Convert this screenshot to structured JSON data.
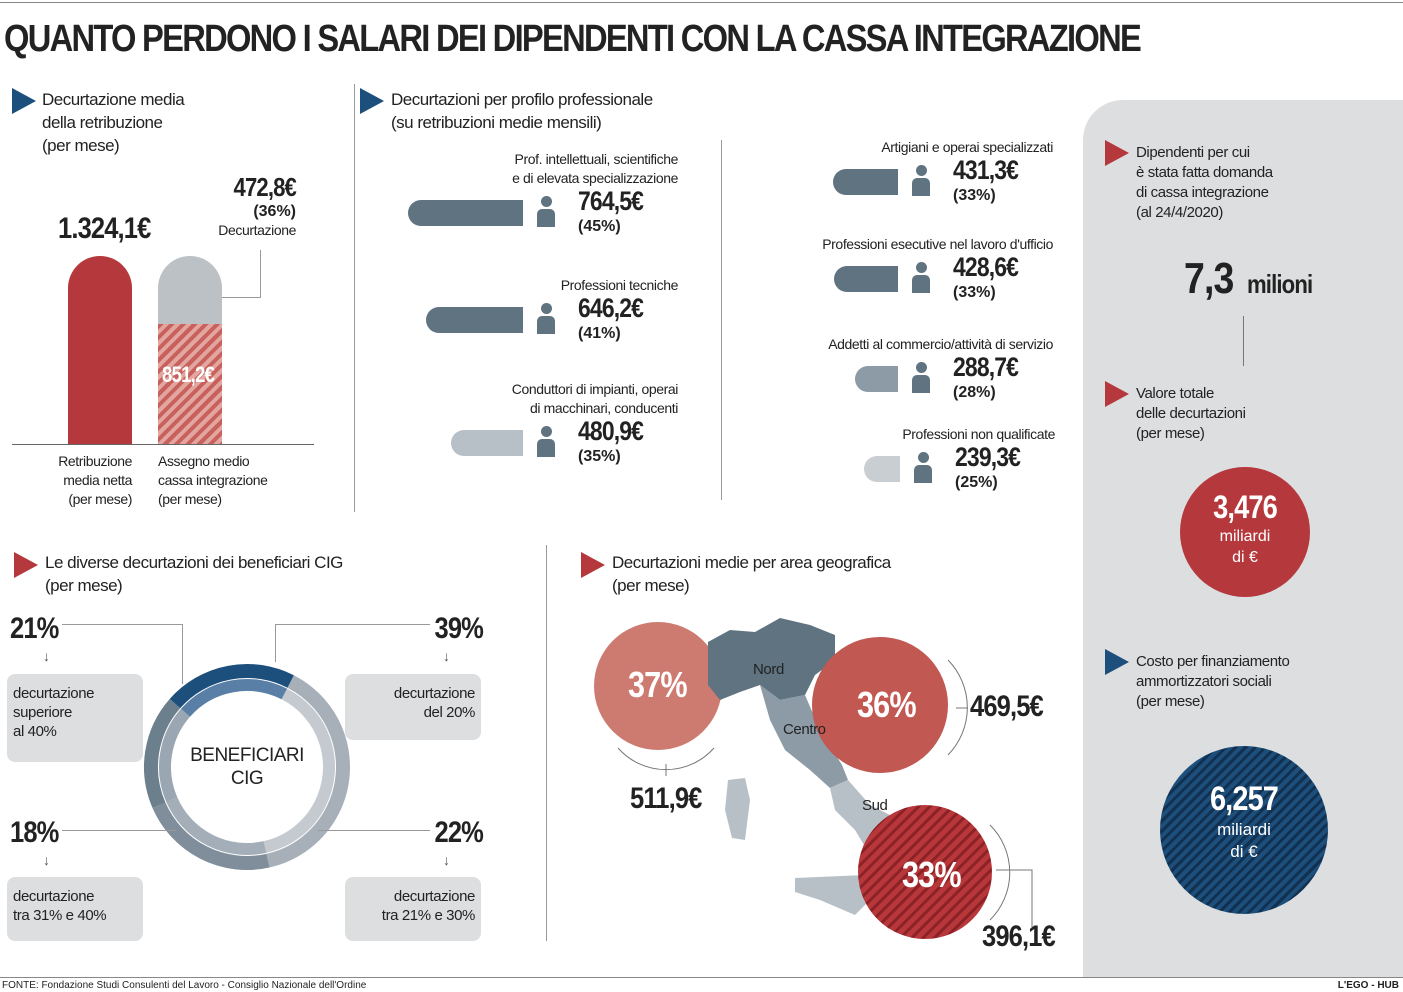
{
  "title": "QUANTO PERDONO I SALARI DEI DIPENDENTI CON LA CASSA INTEGRAZIONE",
  "colors": {
    "red": "#b5393c",
    "blue": "#1d4f7c",
    "gray": "#5f7380",
    "lightgray": "#dcdee0"
  },
  "sec1": {
    "title1": "Decurtazione media",
    "title2": "della retribuzione",
    "title3": "(per mese)",
    "bar1_value": "1.324,1€",
    "bar2_inner": "851,2€",
    "decurt_value": "472,8€",
    "decurt_pct": "(36%)",
    "decurt_label": "Decurtazione",
    "label1": [
      "Retribuzione",
      "media netta",
      "(per mese)"
    ],
    "label2": [
      "Assegno medio",
      "cassa integrazione",
      "(per mese)"
    ]
  },
  "sec2": {
    "title1": "Decurtazioni per profilo professionale",
    "title2": "(su retribuzioni medie mensili)",
    "items": [
      {
        "label": [
          "Prof. intellettuali, scientifiche",
          "e di elevata specializzazione"
        ],
        "value": "764,5€",
        "pct": "(45%)",
        "icon": "gear-person-icon"
      },
      {
        "label": [
          "Professioni tecniche"
        ],
        "value": "646,2€",
        "pct": "(41%)",
        "icon": "technician-icon"
      },
      {
        "label": [
          "Conduttori di impianti, operai",
          "di macchinari, conducenti"
        ],
        "value": "480,9€",
        "pct": "(35%)",
        "icon": "driver-icon"
      },
      {
        "label": [
          "Artigiani e operai specializzati"
        ],
        "value": "431,3€",
        "pct": "(33%)",
        "icon": "worker-icon"
      },
      {
        "label": [
          "Professioni esecutive nel lavoro d'ufficio"
        ],
        "value": "428,6€",
        "pct": "(33%)",
        "icon": "office-worker-icon"
      },
      {
        "label": [
          "Addetti al commercio/attività di servizio"
        ],
        "value": "288,7€",
        "pct": "(28%)",
        "icon": "shop-clerk-icon"
      },
      {
        "label": [
          "Professioni non qualificate"
        ],
        "value": "239,3€",
        "pct": "(25%)",
        "icon": "person-icon"
      }
    ]
  },
  "sec3": {
    "title1": "Le diverse decurtazioni dei beneficiari CIG",
    "title2": "(per mese)",
    "center1": "BENEFICIARI",
    "center2": "CIG",
    "items": [
      {
        "pct": "21%",
        "label": [
          "decurtazione",
          "superiore",
          "al 40%"
        ]
      },
      {
        "pct": "39%",
        "label": [
          "decurtazione",
          "del 20%"
        ]
      },
      {
        "pct": "18%",
        "label": [
          "decurtazione",
          "tra 31% e 40%"
        ]
      },
      {
        "pct": "22%",
        "label": [
          "decurtazione",
          "tra 21% e 30%"
        ]
      }
    ]
  },
  "sec4": {
    "title1": "Decurtazioni medie per area geografica",
    "title2": "(per mese)",
    "areas": [
      {
        "name": "Nord",
        "pct": "37%",
        "value": "511,9€"
      },
      {
        "name": "Centro",
        "pct": "36%",
        "value": "469,5€"
      },
      {
        "name": "Sud",
        "pct": "33%",
        "value": "396,1€"
      }
    ]
  },
  "side": {
    "t1": [
      "Dipendenti per cui",
      "è stata fatta domanda",
      "di cassa integrazione",
      "(al 24/4/2020)"
    ],
    "v1": "7,3",
    "v1unit": "milioni",
    "t2": [
      "Valore totale",
      "delle decurtazioni",
      "(per mese)"
    ],
    "v2": "3,476",
    "v2unit": [
      "miliardi",
      "di €"
    ],
    "t3": [
      "Costo per finanziamento",
      "ammortizzatori sociali",
      "(per mese)"
    ],
    "v3": "6,257",
    "v3unit": [
      "miliardi",
      "di €"
    ]
  },
  "footer": {
    "source": "FONTE: Fondazione Studi Consulenti del Lavoro - Consiglio Nazionale dell'Ordine",
    "credit": "L'EGO - HUB"
  },
  "chart_data": [
    {
      "type": "bar",
      "title": "Decurtazione media della retribuzione (per mese)",
      "categories": [
        "Retribuzione media netta (per mese)",
        "Assegno medio cassa integrazione (per mese)"
      ],
      "values": [
        1324.1,
        851.2
      ],
      "annotation": {
        "decurtazione": 472.8,
        "pct": 36
      }
    },
    {
      "type": "bar",
      "orientation": "horizontal",
      "title": "Decurtazioni per profilo professionale",
      "categories": [
        "Prof. intellettuali, scientifiche e di elevata specializzazione",
        "Professioni tecniche",
        "Conduttori di impianti, operai di macchinari, conducenti",
        "Artigiani e operai specializzati",
        "Professioni esecutive nel lavoro d'ufficio",
        "Addetti al commercio/attività di servizio",
        "Professioni non qualificate"
      ],
      "values": [
        764.5,
        646.2,
        480.9,
        431.3,
        428.6,
        288.7,
        239.3
      ],
      "pct": [
        45,
        41,
        35,
        33,
        33,
        28,
        25
      ]
    },
    {
      "type": "pie",
      "donut": true,
      "title": "Le diverse decurtazioni dei beneficiari CIG",
      "categories": [
        "decurtazione del 20%",
        "decurtazione tra 21% e 30%",
        "decurtazione tra 31% e 40%",
        "decurtazione superiore al 40%"
      ],
      "values": [
        39,
        22,
        18,
        21
      ]
    },
    {
      "type": "table",
      "title": "Decurtazioni medie per area geografica",
      "categories": [
        "Nord",
        "Centro",
        "Sud"
      ],
      "pct": [
        37,
        36,
        33
      ],
      "values": [
        511.9,
        469.5,
        396.1
      ]
    }
  ]
}
